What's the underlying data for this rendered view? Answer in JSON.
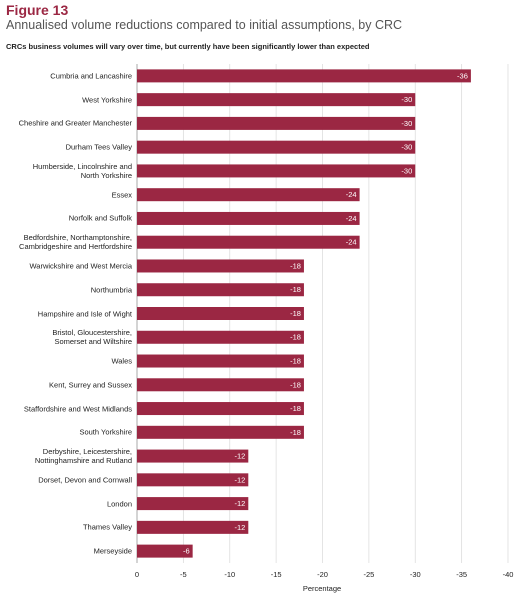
{
  "chart_data": {
    "type": "bar",
    "orientation": "horizontal",
    "figure_label": "Figure 13",
    "title": "Annualised volume reductions compared to initial assumptions, by CRC",
    "subtitle": "CRCs business volumes will vary over time, but currently have been significantly lower than expected",
    "x_label": "Percentage",
    "categories": [
      "Cumbria and Lancashire",
      "West Yorkshire",
      "Cheshire and Greater Manchester",
      "Durham Tees Valley",
      "Humberside, Lincolnshire and\nNorth Yorkshire",
      "Essex",
      "Norfolk and Suffolk",
      "Bedfordshire, Northamptonshire,\nCambridgeshire and Hertfordshire",
      "Warwickshire and West Mercia",
      "Northumbria",
      "Hampshire and Isle of Wight",
      "Bristol, Gloucestershire,\nSomerset and Wiltshire",
      "Wales",
      "Kent, Surrey and Sussex",
      "Staffordshire and West Midlands",
      "South Yorkshire",
      "Derbyshire, Leicestershire,\nNottinghamshire and Rutland",
      "Dorset, Devon and Cornwall",
      "London",
      "Thames Valley",
      "Merseyside"
    ],
    "values": [
      -36,
      -30,
      -30,
      -30,
      -30,
      -24,
      -24,
      -24,
      -18,
      -18,
      -18,
      -18,
      -18,
      -18,
      -18,
      -18,
      -12,
      -12,
      -12,
      -12,
      -6
    ],
    "color": "#9b2743",
    "xlim": [
      0,
      -40
    ],
    "xticks": [
      0,
      -5,
      -10,
      -15,
      -20,
      -25,
      -30,
      -35,
      -40
    ],
    "grid": true
  }
}
